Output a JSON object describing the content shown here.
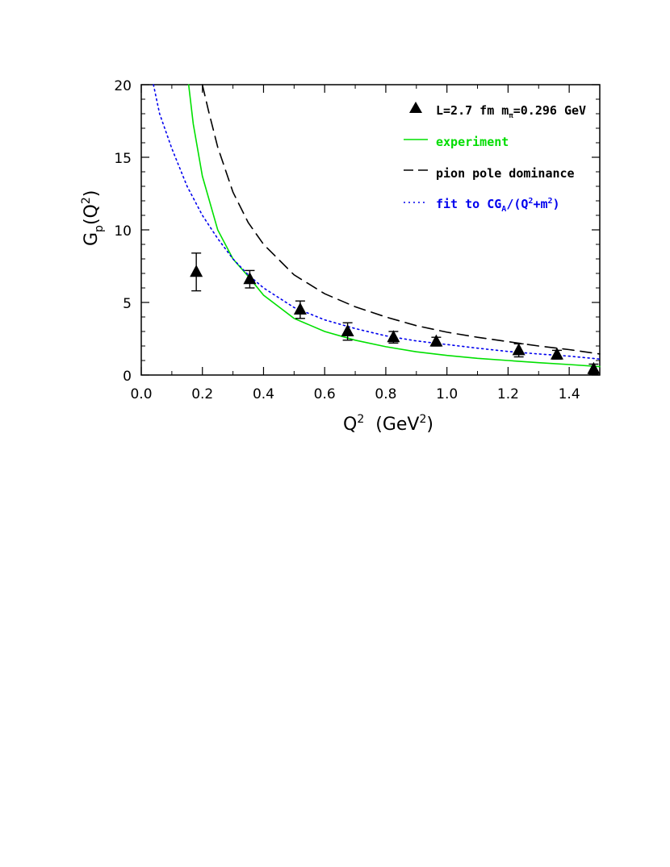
{
  "chart_data": {
    "type": "scatter",
    "xlabel": {
      "base": "Q",
      "sup": "2",
      "unit_open": "(GeV",
      "unit_sup": "2",
      "unit_close": ")"
    },
    "ylabel": {
      "base": "G",
      "sub": "p",
      "open": "(Q",
      "sup": "2",
      "close": ")"
    },
    "xlim": [
      0,
      1.5
    ],
    "ylim": [
      0,
      20
    ],
    "x_ticks": [
      0.0,
      0.2,
      0.4,
      0.6,
      0.8,
      1.0,
      1.2,
      1.4
    ],
    "x_tick_labels": [
      "0.0",
      "0.2",
      "0.4",
      "0.6",
      "0.8",
      "1.0",
      "1.2",
      "1.4"
    ],
    "y_ticks": [
      0,
      5,
      10,
      15,
      20
    ],
    "y_tick_labels": [
      "0",
      "5",
      "10",
      "15",
      "20"
    ],
    "series": [
      {
        "kind": "points",
        "color": "#000000",
        "marker": "triangle",
        "legend": {
          "main": "L=2.7 fm  m",
          "sub": "π",
          "tail": "=0.296 GeV"
        },
        "x": [
          0.18,
          0.355,
          0.52,
          0.675,
          0.825,
          0.965,
          1.235,
          1.36,
          1.48
        ],
        "y": [
          7.1,
          6.6,
          4.5,
          3.0,
          2.6,
          2.3,
          1.7,
          1.4,
          0.4
        ],
        "err": [
          1.3,
          0.6,
          0.6,
          0.6,
          0.4,
          0.3,
          0.45,
          0.3,
          0.35
        ]
      },
      {
        "kind": "line",
        "style": "solid",
        "color": "#00e000",
        "legend": {
          "text": "experiment"
        },
        "x": [
          0.155,
          0.17,
          0.2,
          0.25,
          0.3,
          0.35,
          0.4,
          0.5,
          0.6,
          0.7,
          0.8,
          0.9,
          1.0,
          1.1,
          1.2,
          1.3,
          1.4,
          1.5
        ],
        "y": [
          20.0,
          17.3,
          13.7,
          10.0,
          8.0,
          6.8,
          5.5,
          3.9,
          3.0,
          2.4,
          1.95,
          1.6,
          1.35,
          1.15,
          1.0,
          0.85,
          0.72,
          0.58
        ]
      },
      {
        "kind": "line",
        "style": "dashed",
        "color": "#000000",
        "legend": {
          "text": "pion pole dominance"
        },
        "x": [
          0.2,
          0.22,
          0.25,
          0.3,
          0.35,
          0.4,
          0.5,
          0.6,
          0.7,
          0.8,
          0.9,
          1.0,
          1.1,
          1.2,
          1.3,
          1.4,
          1.5
        ],
        "y": [
          20.0,
          18.2,
          15.7,
          12.6,
          10.5,
          9.0,
          6.9,
          5.6,
          4.7,
          4.0,
          3.4,
          2.95,
          2.6,
          2.3,
          2.0,
          1.75,
          1.45
        ]
      },
      {
        "kind": "line",
        "style": "dotted",
        "color": "#0000ee",
        "legend": {
          "main": "fit to CG",
          "sub": "A",
          "mid": "/(Q",
          "sup1": "2",
          "mid2": "+m",
          "sup2": "2",
          "tail": ")"
        },
        "x": [
          0.04,
          0.06,
          0.1,
          0.15,
          0.2,
          0.25,
          0.3,
          0.35,
          0.4,
          0.5,
          0.6,
          0.7,
          0.8,
          0.9,
          1.0,
          1.1,
          1.2,
          1.3,
          1.4,
          1.5
        ],
        "y": [
          20.0,
          18.0,
          15.6,
          13.0,
          11.0,
          9.4,
          8.0,
          6.9,
          6.0,
          4.65,
          3.8,
          3.2,
          2.7,
          2.35,
          2.1,
          1.85,
          1.62,
          1.45,
          1.3,
          1.1
        ]
      }
    ]
  }
}
